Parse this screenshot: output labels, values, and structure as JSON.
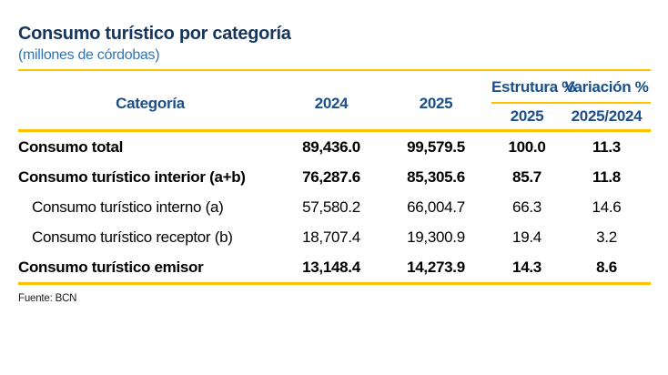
{
  "header": {
    "title": "Consumo turístico por categoría",
    "subtitle": "(millones de córdobas)"
  },
  "table": {
    "columns": {
      "category": "Categoría",
      "year_2024": "2024",
      "year_2025": "2025",
      "estructura_group": "Estrutura %",
      "estructura_sub": "2025",
      "variacion_group": "Variación %",
      "variacion_sub": "2025/2024"
    },
    "rows": [
      {
        "label": "Consumo total",
        "y2024": "89,436.0",
        "y2025": "99,579.5",
        "estructura": "100.0",
        "variacion": "11.3"
      },
      {
        "label": "Consumo turístico interior (a+b)",
        "y2024": "76,287.6",
        "y2025": "85,305.6",
        "estructura": "85.7",
        "variacion": "11.8"
      },
      {
        "label": "Consumo turístico interno (a)",
        "y2024": "57,580.2",
        "y2025": "66,004.7",
        "estructura": "66.3",
        "variacion": "14.6"
      },
      {
        "label": "Consumo turístico receptor (b)",
        "y2024": "18,707.4",
        "y2025": "19,300.9",
        "estructura": "19.4",
        "variacion": "3.2"
      },
      {
        "label": "Consumo turístico emisor",
        "y2024": "13,148.4",
        "y2025": "14,273.9",
        "estructura": "14.3",
        "variacion": "8.6"
      }
    ]
  },
  "footer": {
    "source": "Fuente: BCN"
  },
  "colors": {
    "accent_line": "#FFC000",
    "title_text": "#17365D",
    "subtitle_text": "#2E75B6",
    "header_text": "#1C4E89",
    "body_text": "#000000"
  }
}
